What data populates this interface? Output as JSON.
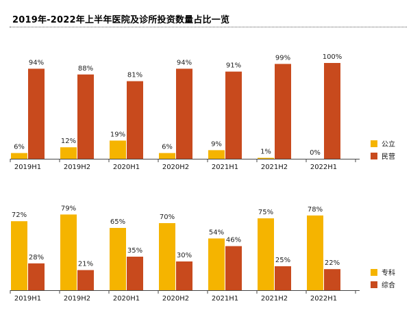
{
  "title": "2019年-2022年上半年医院及诊所投资数量占比一览",
  "chart_data": [
    {
      "type": "bar",
      "categories": [
        "2019H1",
        "2019H2",
        "2020H1",
        "2020H2",
        "2021H1",
        "2021H2",
        "2022H1"
      ],
      "series": [
        {
          "name": "公立",
          "values": [
            6,
            12,
            19,
            6,
            9,
            1,
            0
          ],
          "color": "#F5B400"
        },
        {
          "name": "民营",
          "values": [
            94,
            88,
            81,
            94,
            91,
            99,
            100
          ],
          "color": "#C84A1D"
        }
      ],
      "unit": "%",
      "ylim": [
        0,
        100
      ],
      "grid": false,
      "legend": "right"
    },
    {
      "type": "bar",
      "categories": [
        "2019H1",
        "2019H2",
        "2020H1",
        "2020H2",
        "2021H1",
        "2021H2",
        "2022H1"
      ],
      "series": [
        {
          "name": "专科",
          "values": [
            72,
            79,
            65,
            70,
            54,
            75,
            78
          ],
          "color": "#F5B400"
        },
        {
          "name": "综合",
          "values": [
            28,
            21,
            35,
            30,
            46,
            25,
            22
          ],
          "color": "#C84A1D"
        }
      ],
      "unit": "%",
      "ylim": [
        0,
        100
      ],
      "grid": false,
      "legend": "right"
    }
  ]
}
